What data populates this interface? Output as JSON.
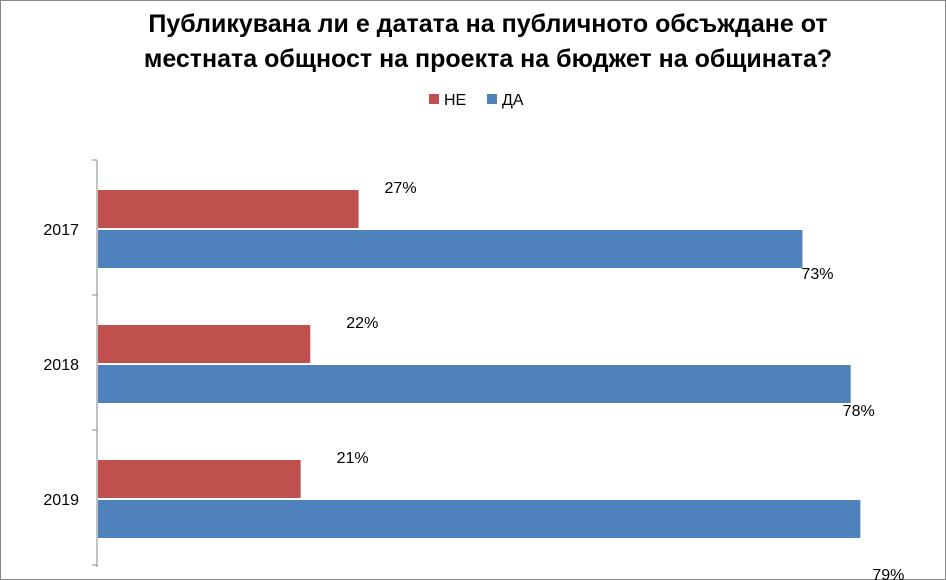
{
  "chart_data": {
    "type": "bar",
    "orientation": "horizontal",
    "title_line1": "Публикувана ли е датата на публичното обсъждане от",
    "title_line2": "местната общност на проекта на бюджет на общината?",
    "categories": [
      "2017",
      "2018",
      "2019"
    ],
    "series": [
      {
        "name": "НЕ",
        "color": "#c0504d",
        "values": [
          27,
          22,
          21
        ],
        "labels": [
          "27%",
          "22%",
          "21%"
        ]
      },
      {
        "name": "ДА",
        "color": "#4f81bd",
        "values": [
          73,
          78,
          79
        ],
        "labels": [
          "73%",
          "78%",
          "79%"
        ]
      }
    ],
    "xlim": [
      0,
      100
    ],
    "grid": false,
    "legend_position": "top"
  }
}
